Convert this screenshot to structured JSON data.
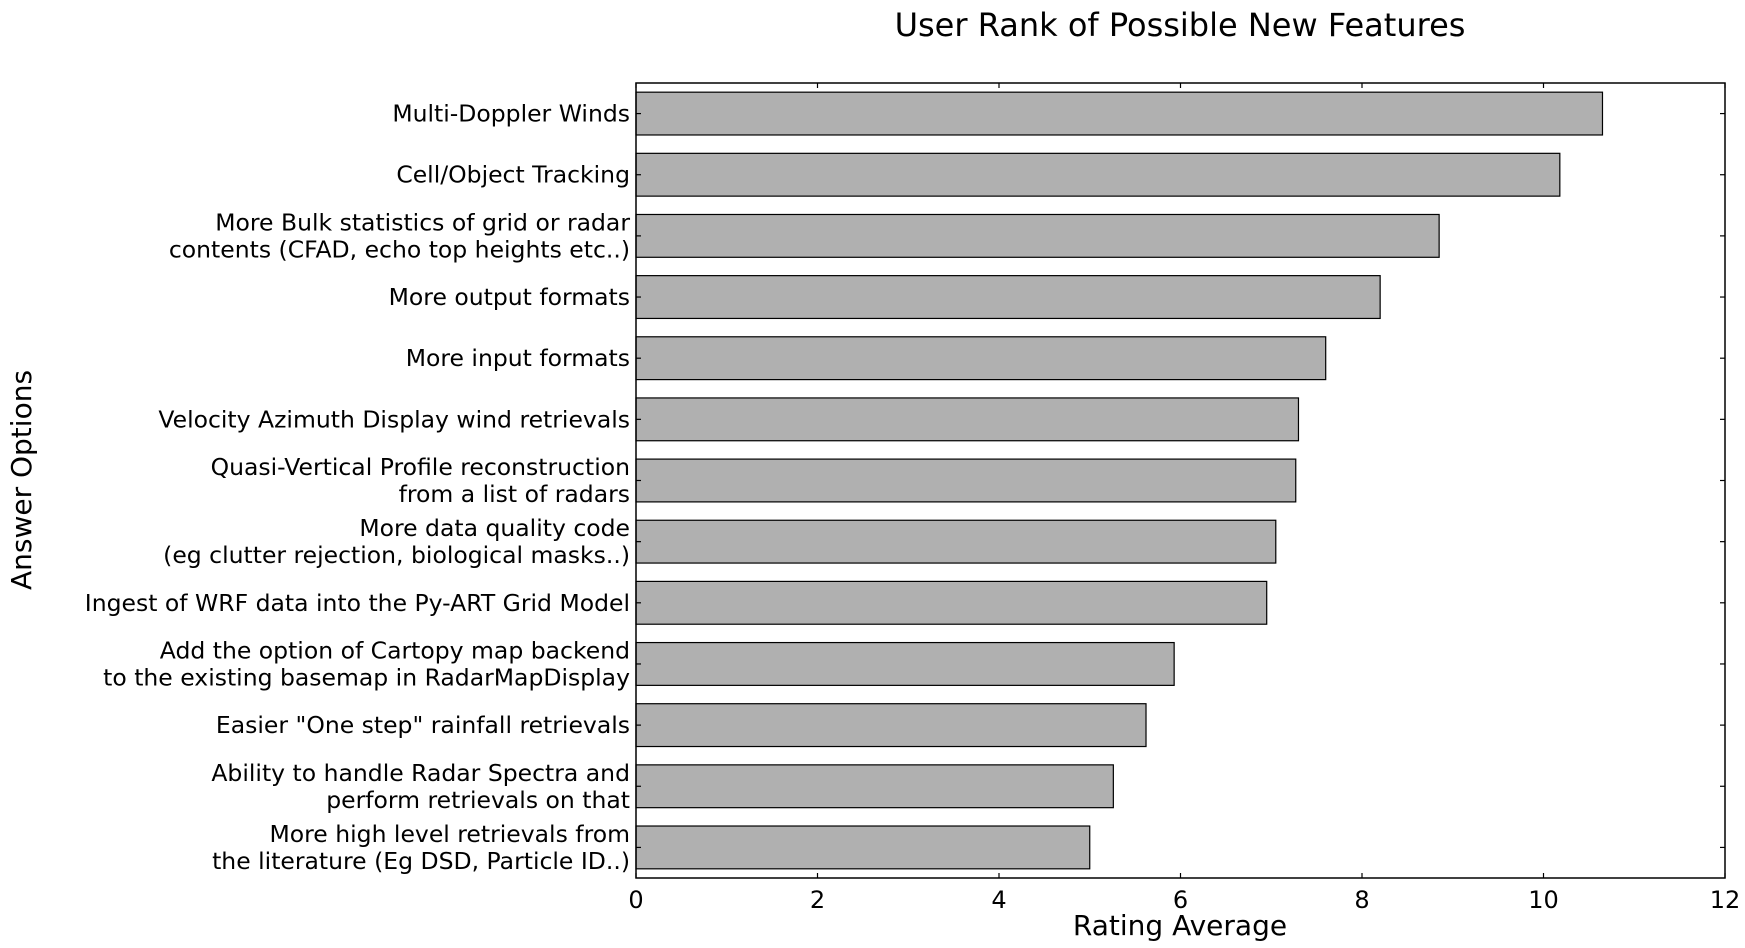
{
  "chart_data": {
    "type": "bar",
    "orientation": "horizontal",
    "title": "User Rank of Possible New Features",
    "xlabel": "Rating Average",
    "ylabel": "Answer Options",
    "xlim": [
      0,
      12
    ],
    "xticks": [
      0,
      2,
      4,
      6,
      8,
      10,
      12
    ],
    "grid": false,
    "bar_color": "#b0b0b0",
    "categories": [
      [
        "Multi-Doppler Winds"
      ],
      [
        "Cell/Object Tracking"
      ],
      [
        "More Bulk statistics of grid or radar",
        "contents (CFAD, echo top heights etc..)"
      ],
      [
        "More output formats"
      ],
      [
        "More input formats"
      ],
      [
        "Velocity Azimuth Display wind retrievals"
      ],
      [
        "Quasi-Vertical Profile reconstruction",
        "from a list of radars"
      ],
      [
        "More data quality code",
        "(eg clutter rejection, biological masks..)"
      ],
      [
        "Ingest of WRF data into the Py-ART Grid Model"
      ],
      [
        "Add the option of Cartopy map backend",
        "to the existing basemap in RadarMapDisplay"
      ],
      [
        "Easier \"One step\" rainfall retrievals"
      ],
      [
        "Ability to handle Radar Spectra and",
        "perform retrievals on that"
      ],
      [
        "More high level retrievals from",
        "the literature (Eg DSD, Particle ID..)"
      ]
    ],
    "values": [
      10.65,
      10.18,
      8.85,
      8.2,
      7.6,
      7.3,
      7.27,
      7.05,
      6.95,
      5.93,
      5.62,
      5.26,
      5.0
    ]
  }
}
